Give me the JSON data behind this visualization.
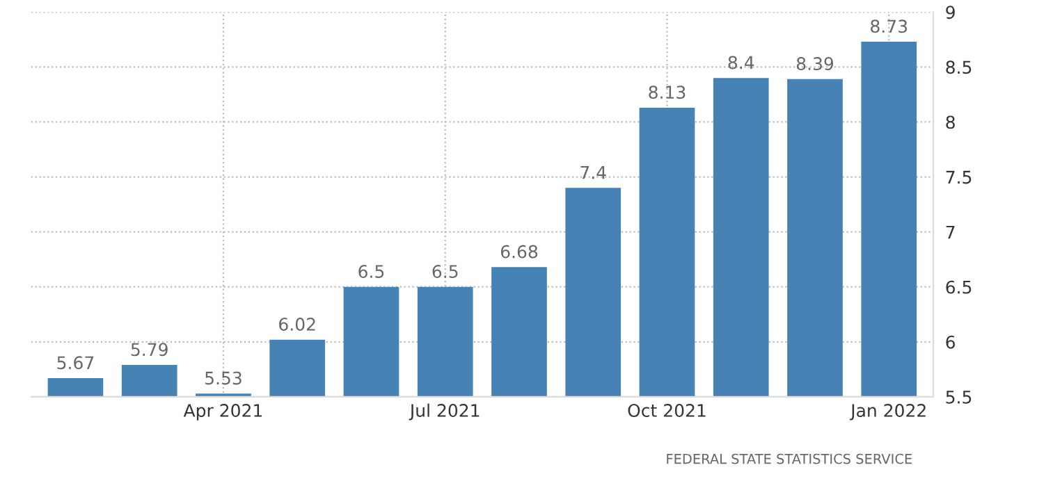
{
  "chart_data": {
    "type": "bar",
    "categories": [
      null,
      null,
      "Apr 2021",
      null,
      null,
      "Jul 2021",
      null,
      null,
      "Oct 2021",
      null,
      null,
      "Jan 2022"
    ],
    "values": [
      5.67,
      5.79,
      5.53,
      6.02,
      6.5,
      6.5,
      6.68,
      7.4,
      8.13,
      8.4,
      8.39,
      8.73
    ],
    "color": "#4682b4",
    "data_labels": true,
    "ylim": [
      5.5,
      9
    ],
    "yticks": [
      5.5,
      6,
      6.5,
      7,
      7.5,
      8,
      8.5,
      9
    ],
    "grid": true,
    "annotations": [
      "FEDERAL STATE STATISTICS SERVICE"
    ]
  }
}
